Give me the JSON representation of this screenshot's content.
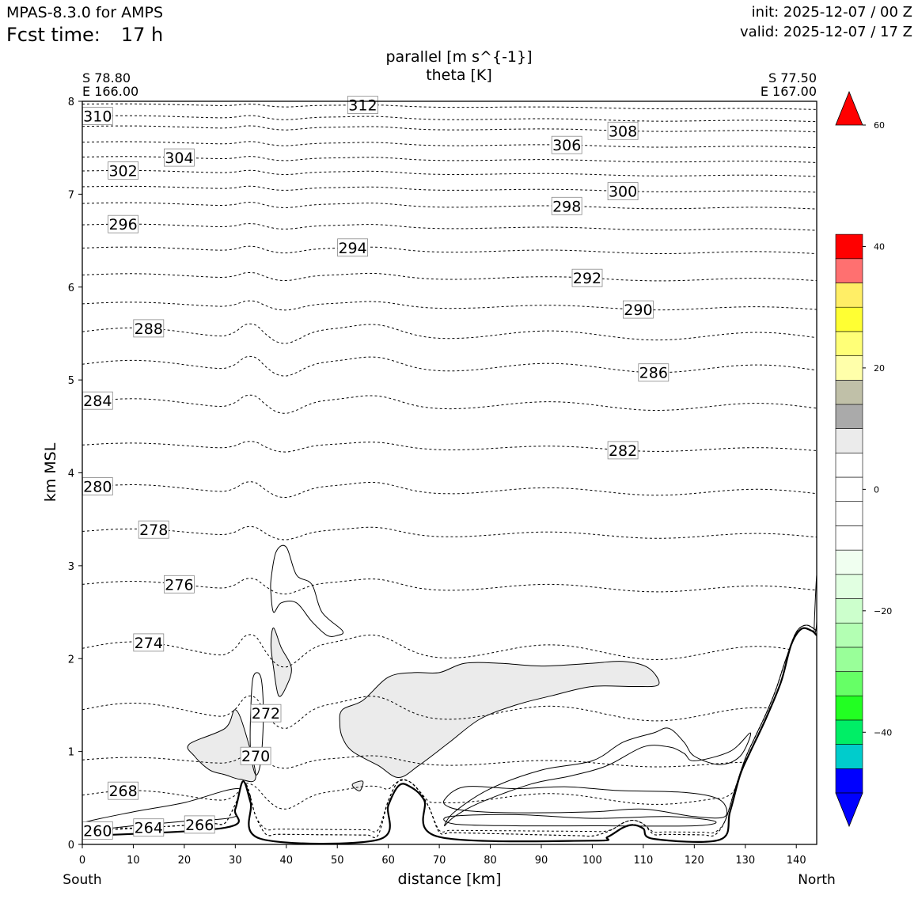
{
  "header": {
    "model": "MPAS-8.3.0 for AMPS",
    "fcst_label": "Fcst time:",
    "fcst_value": "17 h",
    "init": "init: 2025-12-07 / 00 Z",
    "valid": "valid: 2025-12-07 / 17 Z"
  },
  "endpoints": {
    "left_lat": "S 78.80",
    "left_lon": "E 166.00",
    "right_lat": "S 77.50",
    "right_lon": "E 167.00",
    "left_dir": "South",
    "right_dir": "North"
  },
  "chart_data": {
    "type": "cross-section",
    "title": "parallel [m s^{-1}]",
    "subtitle": "theta [K]",
    "xlabel": "distance [km]",
    "ylabel": "km MSL",
    "xlim": [
      0,
      144
    ],
    "ylim": [
      0,
      8
    ],
    "xticks": [
      "0",
      "10",
      "20",
      "30",
      "40",
      "50",
      "60",
      "70",
      "80",
      "90",
      "100",
      "110",
      "120",
      "130",
      "140"
    ],
    "yticks": [
      "0",
      "1",
      "2",
      "3",
      "4",
      "5",
      "6",
      "7",
      "8"
    ],
    "terrain": [
      [
        0,
        0.09
      ],
      [
        28,
        0.18
      ],
      [
        30,
        0.38
      ],
      [
        31.5,
        0.68
      ],
      [
        33,
        0.45
      ],
      [
        35,
        0.06
      ],
      [
        58,
        0.05
      ],
      [
        60,
        0.42
      ],
      [
        62,
        0.63
      ],
      [
        64,
        0.63
      ],
      [
        67,
        0.48
      ],
      [
        70,
        0.08
      ],
      [
        100,
        0.04
      ],
      [
        103,
        0.08
      ],
      [
        106,
        0.18
      ],
      [
        108,
        0.21
      ],
      [
        110,
        0.17
      ],
      [
        112,
        0.06
      ],
      [
        125,
        0.05
      ],
      [
        127,
        0.35
      ],
      [
        129,
        0.75
      ],
      [
        131,
        1.0
      ],
      [
        134,
        1.35
      ],
      [
        137,
        1.75
      ],
      [
        139,
        2.15
      ],
      [
        141,
        2.32
      ],
      [
        143,
        2.3
      ],
      [
        144,
        2.25
      ]
    ],
    "theta_contours": [
      {
        "level": 260,
        "label": "260",
        "label_x": 3,
        "base": 0.1,
        "pert": 0
      },
      {
        "level": 264,
        "label": "264",
        "label_x": 13,
        "base": 0.12,
        "pert": 0
      },
      {
        "level": 266,
        "label": "266",
        "label_x": 23,
        "base": 0.18,
        "pert": 0
      },
      {
        "level": 268,
        "label": "268",
        "label_x": 8,
        "base": 0.53,
        "pert": 0.18
      },
      {
        "level": 270,
        "label": "270",
        "label_x": 34,
        "base": 0.91,
        "pert": 0.1
      },
      {
        "level": 272,
        "label": "272",
        "label_x": 36,
        "base": 1.45,
        "pert": 0.25
      },
      {
        "level": 274,
        "label": "274",
        "label_x": 13,
        "base": 2.11,
        "pert": 0.25
      },
      {
        "level": 276,
        "label": "276",
        "label_x": 19,
        "base": 2.8,
        "pert": 0.12
      },
      {
        "level": 278,
        "label": "278",
        "label_x": 14,
        "base": 3.37,
        "pert": 0.1
      },
      {
        "level": 280,
        "label": "280",
        "label_x": 3,
        "base": 3.84,
        "pert": 0.12
      },
      {
        "level": 282,
        "label": "282",
        "label_x": 106,
        "base": 4.3,
        "pert": 0.08
      },
      {
        "level": 284,
        "label": "284",
        "label_x": 3,
        "base": 4.76,
        "pert": 0.14
      },
      {
        "level": 286,
        "label": "286",
        "label_x": 112,
        "base": 5.17,
        "pert": 0.15
      },
      {
        "level": 288,
        "label": "288",
        "label_x": 13,
        "base": 5.52,
        "pert": 0.15
      },
      {
        "level": 290,
        "label": "290",
        "label_x": 109,
        "base": 5.82,
        "pert": 0.07
      },
      {
        "level": 292,
        "label": "292",
        "label_x": 99,
        "base": 6.13,
        "pert": 0.06
      },
      {
        "level": 294,
        "label": "294",
        "label_x": 53,
        "base": 6.42,
        "pert": 0.05
      },
      {
        "level": 296,
        "label": "296",
        "label_x": 8,
        "base": 6.67,
        "pert": 0.04
      },
      {
        "level": 298,
        "label": "298",
        "label_x": 95,
        "base": 6.9,
        "pert": 0.04
      },
      {
        "level": 300,
        "label": "300",
        "label_x": 106,
        "base": 7.08,
        "pert": 0.03
      },
      {
        "level": 302,
        "label": "302",
        "label_x": 8,
        "base": 7.25,
        "pert": 0.03
      },
      {
        "level": 304,
        "label": "304",
        "label_x": 19,
        "base": 7.4,
        "pert": 0.03
      },
      {
        "level": 306,
        "label": "306",
        "label_x": 95,
        "base": 7.56,
        "pert": 0.03
      },
      {
        "level": 308,
        "label": "308",
        "label_x": 106,
        "base": 7.73,
        "pert": 0.03
      },
      {
        "level": 310,
        "label": "310",
        "label_x": 3,
        "base": 7.84,
        "pert": 0.03
      },
      {
        "level": 312,
        "label": "312",
        "label_x": 55,
        "base": 7.97,
        "pert": 0.02
      }
    ],
    "shaded_regions": [
      {
        "color": "#ebebeb",
        "points": [
          [
            21,
            1.08
          ],
          [
            28,
            1.25
          ],
          [
            30,
            1.45
          ],
          [
            32,
            1.2
          ],
          [
            34,
            0.72
          ],
          [
            31,
            0.7
          ],
          [
            28,
            0.75
          ],
          [
            25,
            0.8
          ],
          [
            22,
            0.95
          ]
        ]
      },
      {
        "color": "#ebebeb",
        "points": [
          [
            37.5,
            2.33
          ],
          [
            39,
            2.12
          ],
          [
            41,
            1.9
          ],
          [
            40,
            1.7
          ],
          [
            38.5,
            1.6
          ],
          [
            37.5,
            1.9
          ],
          [
            37,
            2.15
          ]
        ]
      },
      {
        "color": "#ebebeb",
        "points": [
          [
            51,
            1.45
          ],
          [
            55,
            1.55
          ],
          [
            60,
            1.8
          ],
          [
            65,
            1.85
          ],
          [
            70,
            1.85
          ],
          [
            75,
            1.95
          ],
          [
            82,
            1.95
          ],
          [
            90,
            1.92
          ],
          [
            100,
            1.95
          ],
          [
            106,
            1.97
          ],
          [
            111,
            1.9
          ],
          [
            113,
            1.72
          ],
          [
            108,
            1.7
          ],
          [
            100,
            1.7
          ],
          [
            92,
            1.6
          ],
          [
            85,
            1.5
          ],
          [
            78,
            1.35
          ],
          [
            72,
            1.1
          ],
          [
            66,
            0.85
          ],
          [
            62,
            0.72
          ],
          [
            58,
            0.85
          ],
          [
            53,
            1.0
          ],
          [
            51,
            1.15
          ],
          [
            50.5,
            1.3
          ]
        ]
      },
      {
        "color": "#ebebeb",
        "points": [
          [
            53,
            0.65
          ],
          [
            55,
            0.68
          ],
          [
            54.5,
            0.58
          ],
          [
            53.5,
            0.6
          ]
        ]
      }
    ],
    "speed_contours": [
      [
        [
          37,
          2.85
        ],
        [
          38,
          3.15
        ],
        [
          40,
          3.2
        ],
        [
          42,
          2.9
        ],
        [
          45,
          2.8
        ],
        [
          47,
          2.5
        ],
        [
          51,
          2.3
        ],
        [
          50,
          2.25
        ],
        [
          48,
          2.25
        ],
        [
          45,
          2.4
        ],
        [
          42,
          2.6
        ],
        [
          39,
          2.6
        ],
        [
          37.5,
          2.5
        ],
        [
          37,
          2.7
        ]
      ],
      [
        [
          33.5,
          1.8
        ],
        [
          35,
          1.8
        ],
        [
          35.5,
          1.4
        ],
        [
          35,
          0.9
        ],
        [
          34,
          0.75
        ],
        [
          33,
          1.0
        ],
        [
          33,
          1.4
        ]
      ],
      [
        [
          0,
          0.23
        ],
        [
          10,
          0.35
        ],
        [
          20,
          0.45
        ],
        [
          30,
          0.6
        ],
        [
          33,
          0.5
        ],
        [
          30,
          0.3
        ],
        [
          20,
          0.25
        ],
        [
          10,
          0.2
        ],
        [
          0,
          0.15
        ]
      ],
      [
        [
          71,
          0.2
        ],
        [
          73,
          0.35
        ],
        [
          80,
          0.6
        ],
        [
          90,
          0.8
        ],
        [
          100,
          0.9
        ],
        [
          106,
          1.1
        ],
        [
          112,
          1.2
        ],
        [
          115,
          1.25
        ],
        [
          118,
          1.1
        ],
        [
          120,
          0.95
        ],
        [
          125,
          0.86
        ],
        [
          129,
          0.95
        ],
        [
          131,
          1.2
        ],
        [
          127,
          1.0
        ],
        [
          120,
          0.9
        ],
        [
          118,
          0.98
        ],
        [
          115,
          1.05
        ],
        [
          110,
          1.05
        ],
        [
          103,
          0.85
        ],
        [
          96,
          0.74
        ],
        [
          88,
          0.65
        ],
        [
          78,
          0.45
        ],
        [
          73,
          0.3
        ]
      ],
      [
        [
          71,
          0.48
        ],
        [
          75,
          0.62
        ],
        [
          85,
          0.6
        ],
        [
          95,
          0.62
        ],
        [
          105,
          0.58
        ],
        [
          118,
          0.56
        ],
        [
          125,
          0.48
        ],
        [
          126,
          0.3
        ],
        [
          120,
          0.3
        ],
        [
          110,
          0.38
        ],
        [
          100,
          0.35
        ],
        [
          85,
          0.34
        ],
        [
          76,
          0.36
        ],
        [
          72,
          0.4
        ]
      ],
      [
        [
          72,
          0.3
        ],
        [
          85,
          0.32
        ],
        [
          100,
          0.28
        ],
        [
          115,
          0.3
        ],
        [
          124,
          0.25
        ],
        [
          120,
          0.2
        ],
        [
          100,
          0.2
        ],
        [
          85,
          0.2
        ],
        [
          73,
          0.22
        ]
      ],
      [
        [
          143.5,
          2.3
        ],
        [
          144,
          2.9
        ],
        [
          144,
          2.4
        ]
      ]
    ],
    "colorbar": {
      "ticks": [
        "60",
        "40",
        "20",
        "0",
        "−20",
        "−40"
      ],
      "tick_values": [
        60,
        40,
        20,
        0,
        -20,
        -40
      ],
      "range": [
        -50,
        60
      ],
      "bins": [
        {
          "min": -50,
          "max": -46,
          "color": "#0000ff"
        },
        {
          "min": -46,
          "max": -42,
          "color": "#00cccc"
        },
        {
          "min": -42,
          "max": -38,
          "color": "#00ee66"
        },
        {
          "min": -38,
          "max": -34,
          "color": "#22ff22"
        },
        {
          "min": -34,
          "max": -30,
          "color": "#66ff66"
        },
        {
          "min": -30,
          "max": -26,
          "color": "#99ff99"
        },
        {
          "min": -26,
          "max": -22,
          "color": "#b3ffb3"
        },
        {
          "min": -22,
          "max": -18,
          "color": "#ccffcc"
        },
        {
          "min": -18,
          "max": -14,
          "color": "#e1ffe1"
        },
        {
          "min": -14,
          "max": -10,
          "color": "#f0fff0"
        },
        {
          "min": -10,
          "max": -6,
          "color": "#ffffff"
        },
        {
          "min": -6,
          "max": -2,
          "color": "#ffffff"
        },
        {
          "min": -2,
          "max": 2,
          "color": "#ffffff"
        },
        {
          "min": 2,
          "max": 6,
          "color": "#ffffff"
        },
        {
          "min": 6,
          "max": 10,
          "color": "#ebebeb"
        },
        {
          "min": 10,
          "max": 14,
          "color": "#aaaaaa"
        },
        {
          "min": 14,
          "max": 18,
          "color": "#c0c0a8"
        },
        {
          "min": 18,
          "max": 22,
          "color": "#ffffaa"
        },
        {
          "min": 22,
          "max": 26,
          "color": "#ffff77"
        },
        {
          "min": 26,
          "max": 30,
          "color": "#ffff33"
        },
        {
          "min": 30,
          "max": 34,
          "color": "#ffee66"
        },
        {
          "min": 34,
          "max": 38,
          "color": "#ff7070"
        },
        {
          "min": 38,
          "max": 42,
          "color": "#ff0000"
        }
      ],
      "under_color": "#0000ff",
      "over_color": "#ff0000"
    }
  }
}
